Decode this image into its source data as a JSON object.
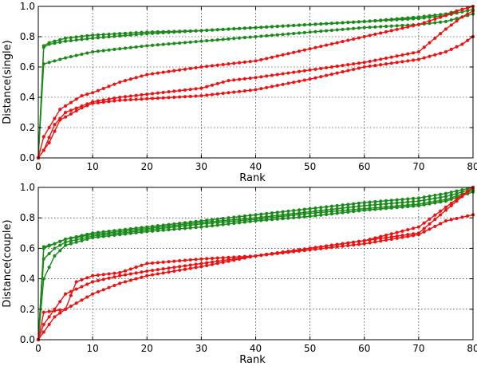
{
  "chart_data": [
    {
      "type": "line",
      "xlabel": "Rank",
      "ylabel": "Distance(single)",
      "xlim": [
        0,
        80
      ],
      "ylim": [
        0.0,
        1.0
      ],
      "xticks": [
        0,
        10,
        20,
        30,
        40,
        50,
        60,
        70,
        80
      ],
      "yticks": [
        0.0,
        0.2,
        0.4,
        0.6,
        0.8,
        1.0
      ],
      "grid": true,
      "colors": {
        "green": "#1a8a1a",
        "red": "#ee1111"
      },
      "series": [
        {
          "color": "green",
          "x": [
            0,
            1,
            2,
            5,
            10,
            20,
            30,
            40,
            50,
            60,
            70,
            75,
            80
          ],
          "y": [
            0.0,
            0.73,
            0.75,
            0.77,
            0.79,
            0.82,
            0.84,
            0.86,
            0.88,
            0.9,
            0.92,
            0.94,
            0.98
          ]
        },
        {
          "color": "green",
          "x": [
            0,
            1,
            2,
            5,
            10,
            20,
            30,
            40,
            50,
            60,
            70,
            75,
            80
          ],
          "y": [
            0.0,
            0.74,
            0.76,
            0.79,
            0.81,
            0.83,
            0.84,
            0.86,
            0.88,
            0.9,
            0.93,
            0.95,
            1.0
          ]
        },
        {
          "color": "green",
          "x": [
            0,
            1,
            2,
            5,
            10,
            20,
            30,
            40,
            50,
            60,
            70,
            75,
            80
          ],
          "y": [
            0.0,
            0.62,
            0.63,
            0.66,
            0.7,
            0.74,
            0.77,
            0.8,
            0.83,
            0.86,
            0.88,
            0.9,
            0.95
          ]
        },
        {
          "color": "red",
          "x": [
            0,
            1,
            2,
            4,
            8,
            10,
            15,
            20,
            30,
            40,
            50,
            55,
            60,
            65,
            70,
            75,
            78,
            80
          ],
          "y": [
            0.0,
            0.14,
            0.2,
            0.32,
            0.41,
            0.43,
            0.5,
            0.55,
            0.6,
            0.64,
            0.72,
            0.76,
            0.8,
            0.84,
            0.88,
            0.94,
            0.98,
            1.0
          ]
        },
        {
          "color": "red",
          "x": [
            0,
            1,
            3,
            5,
            10,
            15,
            20,
            30,
            35,
            40,
            50,
            60,
            70,
            75,
            78,
            80
          ],
          "y": [
            0.0,
            0.05,
            0.22,
            0.3,
            0.37,
            0.4,
            0.42,
            0.46,
            0.51,
            0.53,
            0.58,
            0.63,
            0.7,
            0.85,
            0.93,
            0.97
          ]
        },
        {
          "color": "red",
          "x": [
            0,
            2,
            4,
            8,
            10,
            15,
            20,
            30,
            40,
            50,
            60,
            70,
            75,
            78,
            80
          ],
          "y": [
            0.0,
            0.1,
            0.25,
            0.33,
            0.36,
            0.38,
            0.39,
            0.41,
            0.45,
            0.52,
            0.6,
            0.65,
            0.7,
            0.75,
            0.8
          ]
        }
      ]
    },
    {
      "type": "line",
      "xlabel": "Rank",
      "ylabel": "Distance(couple)",
      "xlim": [
        0,
        80
      ],
      "ylim": [
        0.0,
        1.0
      ],
      "xticks": [
        0,
        10,
        20,
        30,
        40,
        50,
        60,
        70,
        80
      ],
      "yticks": [
        0.0,
        0.2,
        0.4,
        0.6,
        0.8,
        1.0
      ],
      "grid": true,
      "colors": {
        "green": "#1a8a1a",
        "red": "#ee1111"
      },
      "series": [
        {
          "color": "green",
          "x": [
            0,
            1,
            3,
            5,
            10,
            20,
            30,
            40,
            50,
            60,
            70,
            75,
            80
          ],
          "y": [
            0.0,
            0.6,
            0.63,
            0.66,
            0.7,
            0.74,
            0.78,
            0.82,
            0.86,
            0.9,
            0.93,
            0.96,
            1.0
          ]
        },
        {
          "color": "green",
          "x": [
            0,
            1,
            3,
            5,
            10,
            20,
            30,
            40,
            50,
            60,
            70,
            75,
            80
          ],
          "y": [
            0.0,
            0.61,
            0.63,
            0.66,
            0.69,
            0.73,
            0.77,
            0.8,
            0.84,
            0.88,
            0.91,
            0.94,
            0.99
          ]
        },
        {
          "color": "green",
          "x": [
            0,
            1,
            3,
            5,
            10,
            20,
            30,
            40,
            50,
            60,
            70,
            75,
            80
          ],
          "y": [
            0.0,
            0.53,
            0.6,
            0.64,
            0.68,
            0.72,
            0.76,
            0.79,
            0.83,
            0.86,
            0.89,
            0.92,
            0.98
          ]
        },
        {
          "color": "green",
          "x": [
            0,
            1,
            3,
            5,
            10,
            20,
            30,
            40,
            50,
            60,
            70,
            75,
            80
          ],
          "y": [
            0.0,
            0.4,
            0.55,
            0.62,
            0.67,
            0.71,
            0.74,
            0.78,
            0.81,
            0.85,
            0.88,
            0.91,
            0.97
          ]
        },
        {
          "color": "red",
          "x": [
            0,
            1,
            3,
            5,
            7,
            10,
            15,
            20,
            30,
            40,
            50,
            60,
            70,
            80
          ],
          "y": [
            0.0,
            0.18,
            0.19,
            0.2,
            0.38,
            0.42,
            0.44,
            0.5,
            0.53,
            0.55,
            0.6,
            0.65,
            0.7,
            1.0
          ]
        },
        {
          "color": "red",
          "x": [
            0,
            1,
            3,
            5,
            10,
            15,
            20,
            30,
            40,
            50,
            60,
            70,
            80
          ],
          "y": [
            0.0,
            0.1,
            0.2,
            0.3,
            0.38,
            0.42,
            0.45,
            0.5,
            0.55,
            0.6,
            0.65,
            0.74,
            1.0
          ]
        },
        {
          "color": "red",
          "x": [
            0,
            1,
            3,
            5,
            10,
            15,
            20,
            30,
            40,
            50,
            60,
            70,
            75,
            80
          ],
          "y": [
            0.0,
            0.05,
            0.15,
            0.2,
            0.3,
            0.37,
            0.42,
            0.48,
            0.55,
            0.59,
            0.63,
            0.69,
            0.78,
            0.82
          ]
        }
      ]
    }
  ]
}
